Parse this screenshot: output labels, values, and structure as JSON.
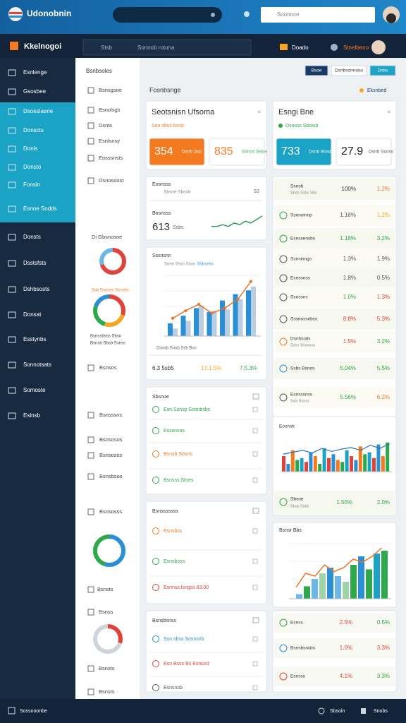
{
  "top_bar": {
    "title": "Udonobnin",
    "search_placeholder": "Soonoce"
  },
  "nav_bar": {
    "brand": "Kkelnogoi",
    "search_label": "Stsb",
    "search_placeholder": "Sonnob rotuna",
    "menu": "Doado",
    "user": "Stnelbeno"
  },
  "sidebar": {
    "items": [
      "Esnlenge",
      "Gsosbee",
      "Dsoeslaene",
      "Donscts",
      "Donls",
      "Donsto",
      "Fonsin",
      "Esnoe Sodds",
      "Donsts",
      "Dsstsfsts",
      "Dshbsosts",
      "Donsat",
      "Esstynbs",
      "Sonnotsats",
      "Somoste",
      "Eslnsb"
    ]
  },
  "sub_sidebar": {
    "title": "Bsnbsoles",
    "items": [
      "Bsnsgsoe",
      "Bsnolsgs",
      "Dsnts",
      "Esnlsnsy",
      "Eosssnsts",
      "Dsnosoost",
      "Di Gbsnosoe",
      "Ssb Bsnoss Ssssbs",
      "Bsnssbsss Sbsn",
      "Bsnsb Sbsb Ssnss",
      "Bsnsos",
      "Bsnsssns",
      "Bsnsosos",
      "Bsnsosss",
      "Bsnsbsos",
      "Bsnsosss",
      "Bsnsts",
      "Bsnss",
      "Bsnsts",
      "Bsnsts"
    ],
    "donuts": [
      {
        "values": [
          70,
          30
        ],
        "colors": [
          "#e0433a",
          "#6cb6e8"
        ]
      },
      {
        "values": [
          30,
          25,
          25,
          20
        ],
        "colors": [
          "#e0433a",
          "#f5a623",
          "#2ea84a",
          "#2b8fd6"
        ]
      },
      {
        "values": [
          55,
          45
        ],
        "colors": [
          "#2b8fd6",
          "#2ea84a"
        ]
      },
      {
        "values": [
          30,
          70
        ],
        "colors": [
          "#e0433a",
          "#cfd4da"
        ]
      }
    ]
  },
  "header": {
    "buttons": [
      "Bsoe",
      "Dsnbsonnoso",
      "Dsbs"
    ],
    "section": "Fosnbsnge",
    "badge": "Eksnbed"
  },
  "kpi_cards": [
    {
      "title": "Seotsnisn Ufsoma",
      "subtitle": "Son sbss bsnb",
      "tiles": [
        {
          "value": "354",
          "label": "Dsnb Ssb",
          "color": "#f47a1f"
        },
        {
          "value": "835",
          "label": "Ssnos Sslos",
          "color": "#ffffff"
        }
      ]
    },
    {
      "title": "Esngi Bne",
      "subtitle": "Dsnsss Sboisb",
      "tiles": [
        {
          "value": "733",
          "label": "Dsnb Bosd",
          "color": "#1ba3c6"
        },
        {
          "value": "27.9",
          "label": "Dsnb Sooss",
          "color": "#ffffff"
        }
      ]
    }
  ],
  "summary_card": {
    "label": "Eosnsss",
    "sub": "Sbsne Sbsob",
    "value": "S3",
    "label2": "Bosnsss",
    "big_value": "613",
    "big_label": "Ssbs",
    "spark": [
      3,
      3,
      4,
      3,
      5,
      4,
      6,
      5,
      7,
      9
    ]
  },
  "combo_chart": {
    "title": "Sssnsnn",
    "legend": "Sonn Sssn Sssn",
    "legend_accent": "Ssbsnss",
    "series": [
      {
        "color": "#2b8fd6",
        "values": [
          20,
          32,
          44,
          38,
          56,
          66,
          72
        ]
      },
      {
        "color": "#b9cde3",
        "values": [
          12,
          24,
          48,
          40,
          42,
          58,
          78
        ]
      }
    ],
    "line": {
      "color": "#e8742a",
      "values": [
        28,
        40,
        50,
        36,
        44,
        58,
        86
      ]
    },
    "footer": "Dsnsb Sonb Ssb Bsn",
    "stats": [
      {
        "text": "6.3 5sb5",
        "color": "#333333"
      },
      {
        "text": "13.1.5%",
        "color": "#f5a623"
      },
      {
        "text": "7.5.3%",
        "color": "#2ea84a"
      }
    ]
  },
  "list_cards": [
    {
      "title": "Sbsnoe",
      "rows": [
        {
          "text": "Esn Ssnsp Sosnbsbs",
          "color": "#2ea84a"
        },
        {
          "text": "Esssnsns",
          "color": "#2ea84a"
        },
        {
          "text": "Bsnsb Sbsns",
          "color": "#f47a1f"
        },
        {
          "text": "Bsnsss Stnes",
          "color": "#2ea84a"
        }
      ]
    },
    {
      "title": "Bsnsssssss",
      "rows": [
        {
          "text": "Esnsbss",
          "color": "#f47a1f"
        },
        {
          "text": "Esnsbsss",
          "color": "#2ea84a"
        },
        {
          "text": "Esnnss lsngss 83.00",
          "color": "#e0433a"
        }
      ]
    },
    {
      "title": "Bsnsbsnss",
      "rows": [
        {
          "text": "Ssn sbss Sosnsnb",
          "color": "#2b8fd6"
        },
        {
          "text": "Esn Bsss Bs Esnsnd",
          "color": "#e0433a"
        },
        {
          "text": "Esnsnsb",
          "color": "#555555"
        }
      ]
    }
  ],
  "table": {
    "rows": [
      {
        "label": "Ssnsb",
        "sub": "Sbsb Ssbs Sbs",
        "v1": "100%",
        "v2": "1.2%",
        "c1": "#333333",
        "c2": "#f47a1f",
        "icon": "#555555"
      },
      {
        "label": "Ssenoinnp",
        "v1": "1.18%",
        "v2": "1.2%",
        "c1": "#555555",
        "c2": "#f5a623",
        "icon": "#2ea84a"
      },
      {
        "label": "Esnssensbs",
        "v1": "1.18%",
        "v2": "3.2%",
        "c1": "#2ea84a",
        "c2": "#2ea84a",
        "icon": "#2ea84a"
      },
      {
        "label": "Ssnsinngs",
        "v1": "1.3%",
        "v2": "1.9%",
        "c1": "#555555",
        "c2": "#555555",
        "icon": "#555555"
      },
      {
        "label": "Esnssnss",
        "v1": "1.8%",
        "v2": "0.5%",
        "c1": "#555555",
        "c2": "#555555",
        "icon": "#555555"
      },
      {
        "label": "Ssnssns",
        "v1": "1.0%",
        "v2": "1.3%",
        "c1": "#2ea84a",
        "c2": "#e0433a",
        "icon": "#555555"
      },
      {
        "label": "Sssnossnbss",
        "v1": "8.8%",
        "v2": "5.3%",
        "c1": "#e0433a",
        "c2": "#e0433a",
        "icon": "#555555"
      },
      {
        "label": "Dsnhsoits",
        "sub": "Sshs Shsnoos",
        "v1": "1.5%",
        "v2": "3.2%",
        "c1": "#e0433a",
        "c2": "#2ea84a",
        "icon": "#f47a1f"
      },
      {
        "label": "Ssbs Bsnos",
        "v1": "5.04%",
        "v2": "5.5%",
        "c1": "#2ea84a",
        "c2": "#2ea84a",
        "icon": "#2b8fd6"
      },
      {
        "label": "Esnsssnss",
        "sub": "Ssis Bsnss",
        "v1": "5.56%",
        "v2": "6.2%",
        "c1": "#2ea84a",
        "c2": "#f47a1f",
        "icon": "#555555"
      }
    ]
  },
  "bar_card": {
    "title": "Eosnsb",
    "values": [
      40,
      20,
      55,
      30,
      35,
      25,
      50,
      40,
      20,
      60,
      35,
      45,
      30,
      25,
      55,
      40,
      30,
      65,
      45,
      50,
      35,
      70,
      40,
      75
    ],
    "colors": [
      "#e0433a",
      "#2b8fd6",
      "#f47a1f",
      "#2ea84a",
      "#1ba3c6"
    ],
    "line": [
      45,
      50,
      55,
      48,
      60,
      52,
      58,
      62,
      55,
      68,
      60,
      72
    ],
    "footer": {
      "label": "Sbsne",
      "sub": "Sbsb Ssbs",
      "v1": "1.50%",
      "v2": "2.0%"
    }
  },
  "trend_card": {
    "title": "Bsnsr Bbs",
    "values": [
      8,
      22,
      35,
      45,
      55,
      40,
      30,
      60,
      75,
      52,
      80,
      85
    ],
    "colors": [
      "#6cb6e8",
      "#2ea84a",
      "#6cb6e8",
      "#9fd3a8",
      "#2b8fd6",
      "#6cb6e8",
      "#9fd3a8",
      "#2ea84a",
      "#2b8fd6",
      "#2ea84a",
      "#1ba3c6",
      "#2ea84a"
    ],
    "line": [
      20,
      45,
      40,
      60,
      48,
      55,
      70,
      65,
      75,
      90
    ]
  },
  "bottom_rows": [
    {
      "label": "Esnss",
      "v1": "2.5%",
      "v2": "0.5%",
      "c1": "#e0433a",
      "c2": "#2ea84a",
      "icon": "#2ea84a"
    },
    {
      "label": "Bsnsbsnsbs",
      "v1": "1.0%",
      "v2": "3.3%",
      "c1": "#e0433a",
      "c2": "#e0433a",
      "icon": "#2b8fd6"
    },
    {
      "label": "Esnsss",
      "v1": "4.1%",
      "v2": "3.3%",
      "c1": "#e0433a",
      "c2": "#2ea84a",
      "icon": "#e0433a"
    }
  ],
  "footer": {
    "left": "Sossnoonbe",
    "right1": "Sbsoin",
    "right2": "Snobs"
  }
}
